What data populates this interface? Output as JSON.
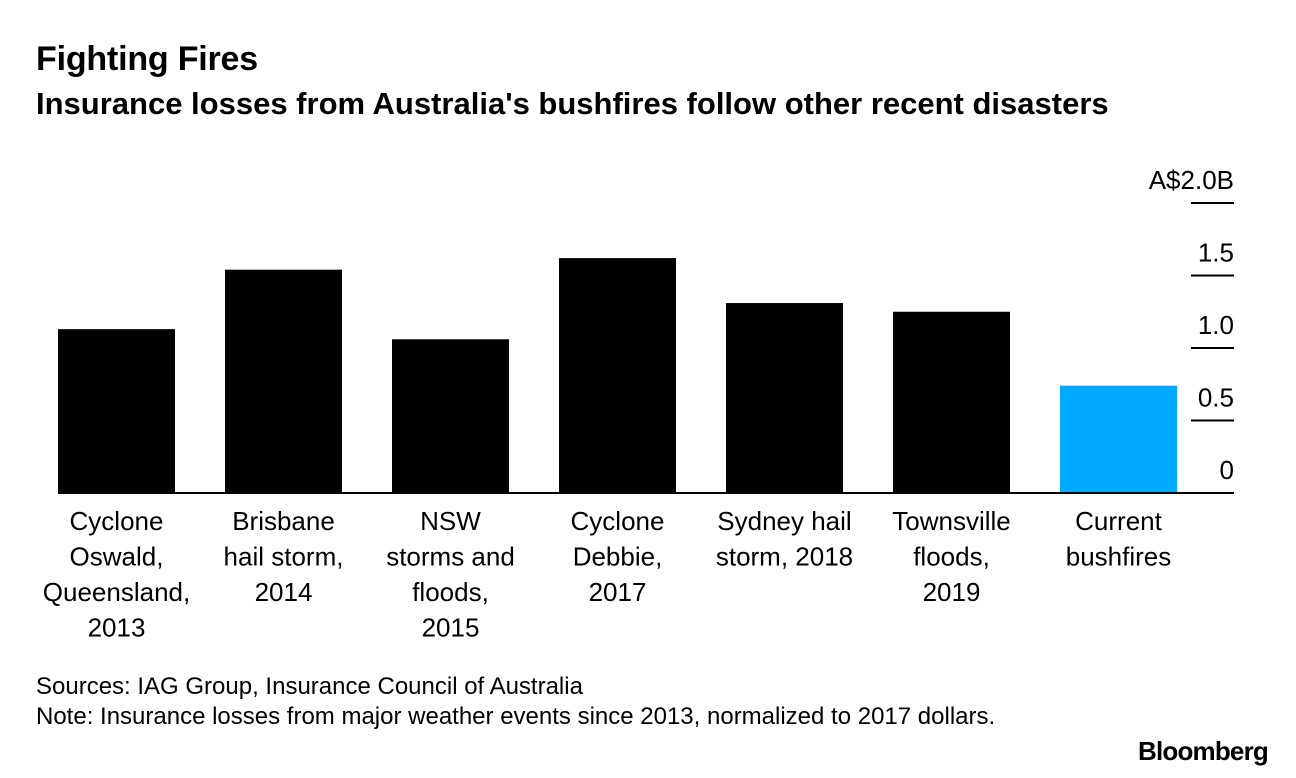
{
  "header": {
    "title": "Fighting Fires",
    "subtitle": "Insurance losses from Australia's bushfires follow other recent disasters"
  },
  "chart_data": {
    "type": "bar",
    "categories": [
      [
        "Cyclone",
        "Oswald,",
        "Queensland,",
        "2013"
      ],
      [
        "Brisbane",
        "hail storm,",
        "2014"
      ],
      [
        "NSW",
        "storms and",
        "floods,",
        "2015"
      ],
      [
        "Cyclone",
        "Debbie,",
        "2017"
      ],
      [
        "Sydney hail",
        "storm, 2018"
      ],
      [
        "Townsville",
        "floods,",
        "2019"
      ],
      [
        "Current",
        "bushfires"
      ]
    ],
    "values": [
      1.13,
      1.54,
      1.06,
      1.62,
      1.31,
      1.25,
      0.74
    ],
    "colors": [
      "#000000",
      "#000000",
      "#000000",
      "#000000",
      "#000000",
      "#000000",
      "#00aaff"
    ],
    "ylim": [
      0,
      2.0
    ],
    "yticks": [
      0,
      0.5,
      1.0,
      1.5,
      2.0
    ],
    "ytick_labels": [
      "0",
      "0.5",
      "1.0",
      "1.5",
      "A$2.0B"
    ],
    "y_axis_position": "right",
    "grid": false
  },
  "footer": {
    "sources": "Sources: IAG Group, Insurance Council of Australia",
    "note": "Note: Insurance losses from major weather events since 2013, normalized to 2017 dollars."
  },
  "brand": {
    "logo_text": "Bloomberg"
  }
}
